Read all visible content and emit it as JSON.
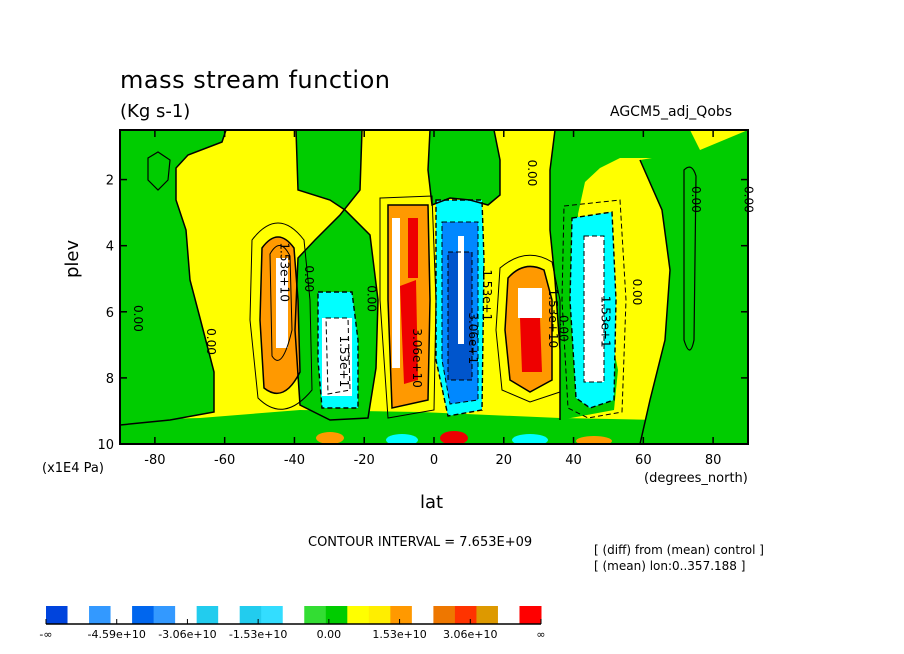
{
  "header": {
    "title": "mass stream function",
    "units": "(Kg s-1)",
    "run": "AGCM5_adj_Qobs"
  },
  "axes": {
    "ylabel": "plev",
    "ylabel_units": "(x1E4 Pa)",
    "xlabel": "lat",
    "xlabel_units": "(degrees_north)"
  },
  "footer": {
    "contour_interval": "CONTOUR INTERVAL = 7.653E+09",
    "diff_note": "[ (diff) from (mean) control ]",
    "mean_note": "[ (mean) lon:0..357.188 ]"
  },
  "chart_data": {
    "type": "heatmap",
    "x_ticks": [
      -80,
      -60,
      -40,
      -20,
      0,
      20,
      40,
      60,
      80
    ],
    "x_tick_labels": [
      "-80",
      "-60",
      "-40",
      "-20",
      "0",
      "20",
      "40",
      "60",
      "80"
    ],
    "y_ticks": [
      2,
      4,
      6,
      8,
      10
    ],
    "y_tick_labels": [
      "2",
      "4",
      "6",
      "8",
      "10"
    ],
    "xlim": [
      -90,
      90
    ],
    "ylim": [
      10,
      0.5
    ],
    "y_inverted": true,
    "contour_labels": [
      {
        "text": "0.00",
        "lat": -86,
        "plev": 6.2
      },
      {
        "text": "0.00",
        "lat": -65,
        "plev": 6.9
      },
      {
        "text": "1.53e+10",
        "lat": -44,
        "plev": 4.8
      },
      {
        "text": "0.00",
        "lat": -37,
        "plev": 5.0
      },
      {
        "text": "1.53e+1",
        "lat": -27,
        "plev": 7.5
      },
      {
        "text": "0.00",
        "lat": -19,
        "plev": 5.6
      },
      {
        "text": "3.06e+10",
        "lat": -6,
        "plev": 7.4
      },
      {
        "text": "3.06e+1",
        "lat": 10,
        "plev": 6.8
      },
      {
        "text": "1.53e+1",
        "lat": 14,
        "plev": 5.5
      },
      {
        "text": "1.53e+10",
        "lat": 33,
        "plev": 6.2
      },
      {
        "text": "0.00",
        "lat": 36,
        "plev": 6.5
      },
      {
        "text": "0.00",
        "lat": 27,
        "plev": 1.8
      },
      {
        "text": "1.53e+1",
        "lat": 48,
        "plev": 6.3
      },
      {
        "text": "0.00",
        "lat": 57,
        "plev": 5.4
      },
      {
        "text": "0.00",
        "lat": 74,
        "plev": 2.6
      },
      {
        "text": "0.00",
        "lat": 89,
        "plev": 2.6
      }
    ],
    "colorbar": {
      "labels": [
        "-∞",
        "-4.59e+10",
        "-3.06e+10",
        "-1.53e+10",
        "0.00",
        "1.53e+10",
        "3.06e+10",
        "∞"
      ],
      "colors": [
        "#0044dd",
        "#ffffff",
        "#3399ff",
        "#ffffff",
        "#0066ee",
        "#3399ff",
        "#ffffff",
        "#22ccee",
        "#ffffff",
        "#22ccee",
        "#33ddff",
        "#ffffff",
        "#33dd33",
        "#00cc00",
        "#ffff00",
        "#ffee00",
        "#ff9900",
        "#ffffff",
        "#ee7700",
        "#ff3300",
        "#dd9900",
        "#ffffff",
        "#ff0000"
      ]
    },
    "fill_colors": {
      "green": "#00cc00",
      "yellow": "#ffff00",
      "orange": "#ff9900",
      "red": "#ee0000",
      "cyan": "#00ffff",
      "blue": "#0088ff",
      "deep_blue": "#0055cc"
    }
  }
}
